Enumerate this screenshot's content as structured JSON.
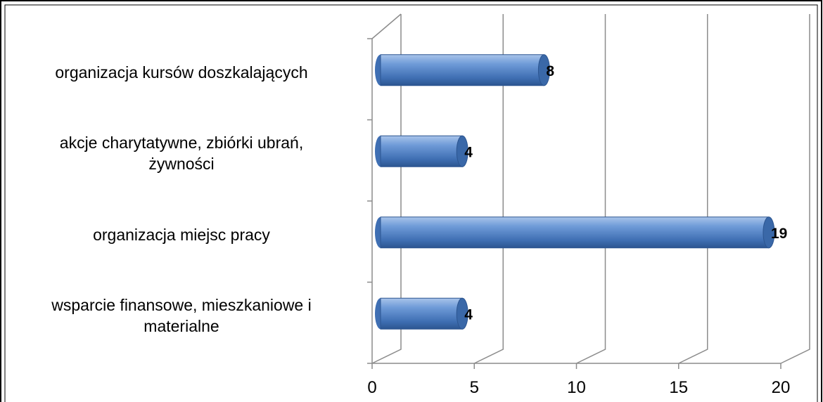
{
  "chart_data": {
    "type": "bar",
    "orientation": "horizontal",
    "categories": [
      "organizacja kursów doszkalających",
      "akcje charytatywne, zbiórki ubrań,\nżywności",
      "organizacja miejsc pracy",
      "wsparcie finansowe, mieszkaniowe i\nmaterialne"
    ],
    "values": [
      8,
      4,
      19,
      4
    ],
    "color": "#4f81bd",
    "xlim": [
      0,
      20
    ],
    "xticks": [
      0,
      5,
      10,
      15,
      20
    ],
    "grid": true
  }
}
